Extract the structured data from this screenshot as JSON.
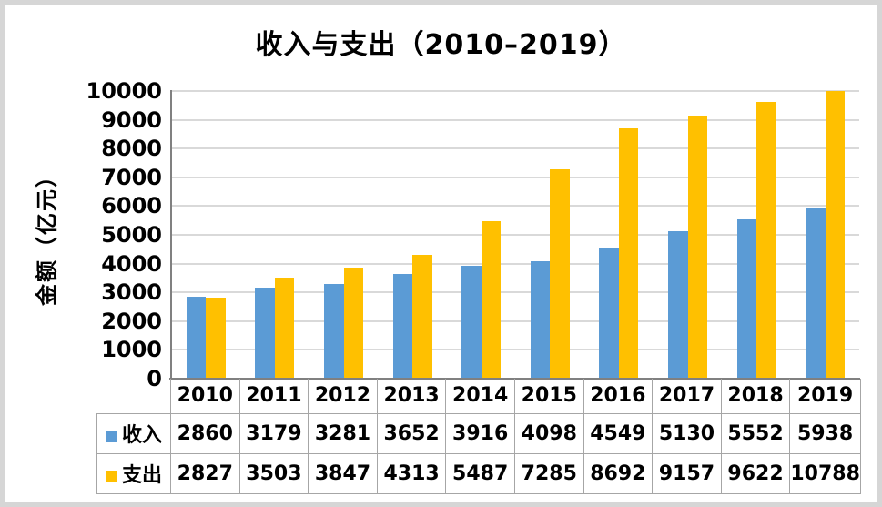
{
  "chart_data": {
    "type": "bar",
    "title": "收入与支出（2010–2019）",
    "ylabel": "金额（亿元）",
    "categories": [
      "2010",
      "2011",
      "2012",
      "2013",
      "2014",
      "2015",
      "2016",
      "2017",
      "2018",
      "2019"
    ],
    "series": [
      {
        "name": "收入",
        "color": "#5B9BD5",
        "values": [
          2860,
          3179,
          3281,
          3652,
          3916,
          4098,
          4549,
          5130,
          5552,
          5938
        ]
      },
      {
        "name": "支出",
        "color": "#FFC000",
        "values": [
          2827,
          3503,
          3847,
          4313,
          5487,
          7285,
          8692,
          9157,
          9622,
          10788
        ]
      }
    ],
    "ylim": [
      0,
      10000
    ],
    "ytick_step": 1000,
    "grid": true,
    "legend_position": "data-table-left",
    "data_table": true
  },
  "colors": {
    "income_bar": "#5B9BD5",
    "expense_bar": "#FFC000",
    "gridline": "#D9D9D9",
    "axis_line": "#808080",
    "table_border": "#A6A6A6",
    "text": "#000000",
    "page_border": "#D6D6D6",
    "background": "#FFFFFF"
  }
}
